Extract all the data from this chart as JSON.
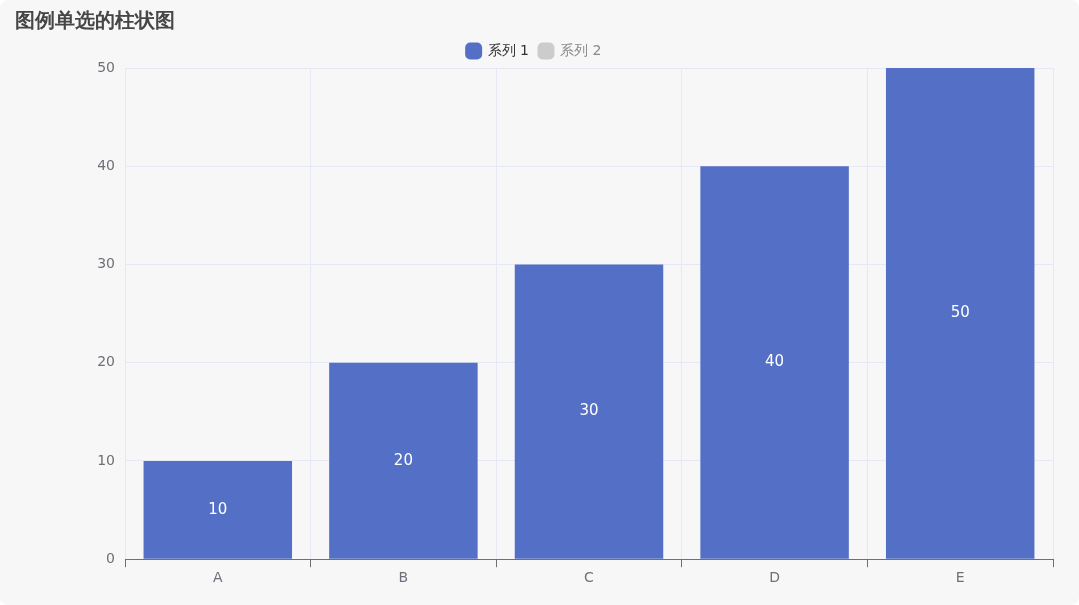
{
  "chart_data": {
    "type": "bar",
    "title": "图例单选的柱状图",
    "categories": [
      "A",
      "B",
      "C",
      "D",
      "E"
    ],
    "series": [
      {
        "name": "系列 1",
        "color": "#5470c6",
        "values": [
          10,
          20,
          30,
          40,
          50
        ]
      },
      {
        "name": "系列 2",
        "color": "#cccccc",
        "values": [
          null,
          null,
          null,
          null,
          null
        ]
      }
    ],
    "ylim": [
      0,
      50
    ],
    "yticks": [
      0,
      10,
      20,
      30,
      40,
      50
    ],
    "grid": true,
    "legend": "top",
    "data_labels": true
  }
}
